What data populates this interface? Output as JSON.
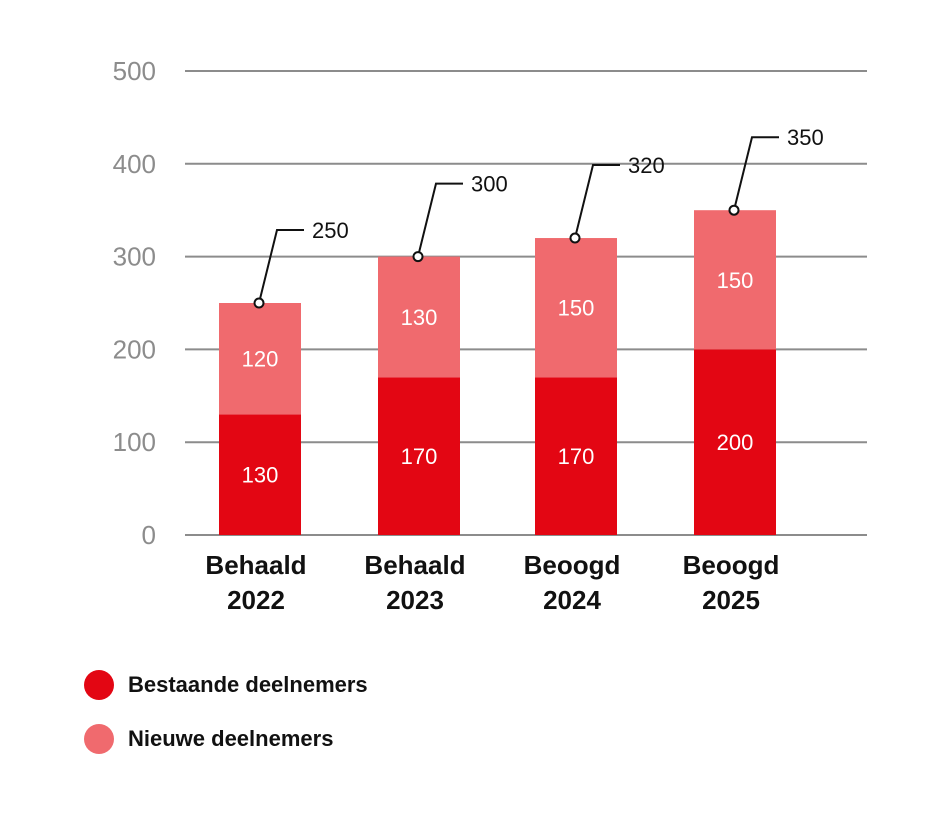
{
  "chart_data": {
    "type": "bar",
    "stacked": true,
    "categories": [
      "Behaald 2022",
      "Behaald 2023",
      "Beoogd 2024",
      "Beoogd 2025"
    ],
    "category_lines": [
      [
        "Behaald",
        "2022"
      ],
      [
        "Behaald",
        "2023"
      ],
      [
        "Beoogd",
        "2024"
      ],
      [
        "Beoogd",
        "2025"
      ]
    ],
    "series": [
      {
        "name": "Bestaande deelnemers",
        "values": [
          130,
          170,
          170,
          200
        ],
        "color": "#e30613"
      },
      {
        "name": "Nieuwe deelnemers",
        "values": [
          120,
          130,
          150,
          150
        ],
        "color": "#f06a6e"
      }
    ],
    "totals": [
      250,
      300,
      320,
      350
    ],
    "ylim": [
      0,
      500
    ],
    "yticks": [
      0,
      100,
      200,
      300,
      400,
      500
    ],
    "grid": true,
    "legend_position": "bottom-left",
    "title": "",
    "xlabel": "",
    "ylabel": ""
  },
  "legend": {
    "items": [
      {
        "label": "Bestaande deelnemers",
        "color": "#e30613"
      },
      {
        "label": "Nieuwe deelnemers",
        "color": "#f06a6e"
      }
    ]
  }
}
